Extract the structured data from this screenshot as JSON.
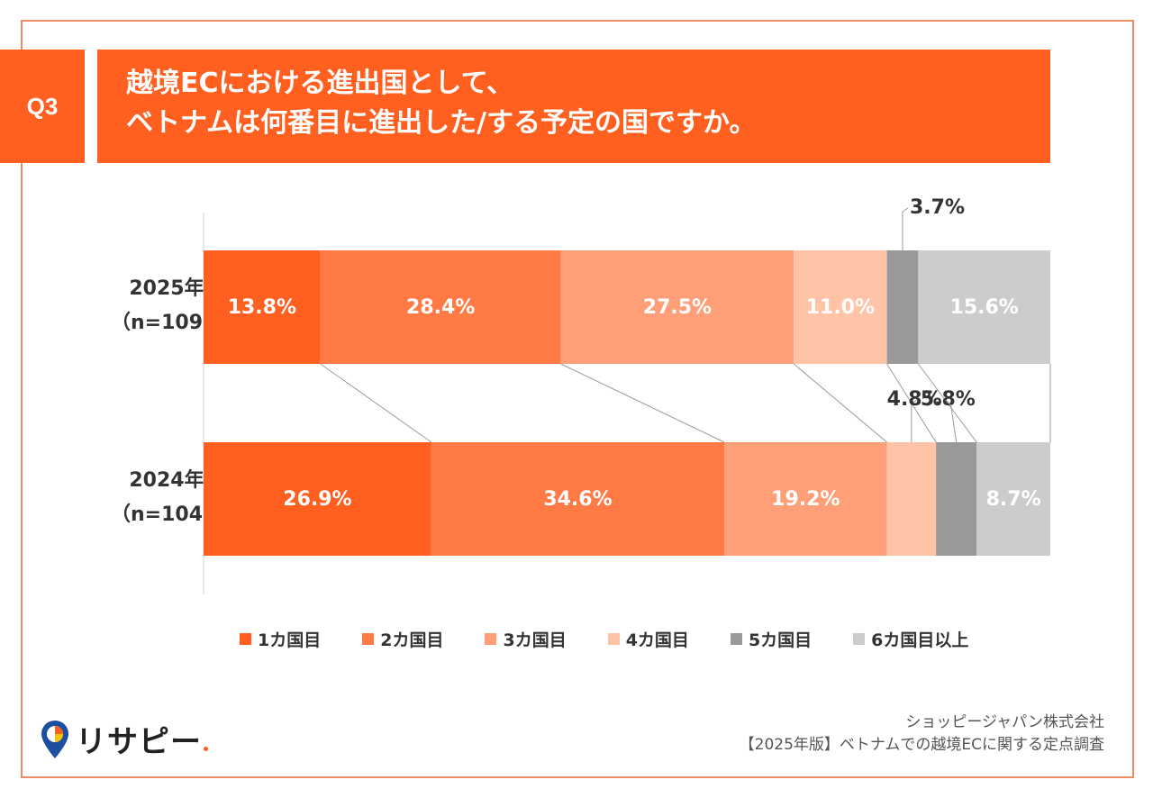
{
  "header": {
    "badge": "Q3",
    "title_line1": "越境ECにおける進出国として、",
    "title_line2": "ベトナムは何番目に進出した/する予定の国ですか。"
  },
  "chart_data": {
    "type": "bar",
    "orientation": "horizontal-stacked-100",
    "categories": [
      "2025年（n=109）",
      "2024年（n=104）"
    ],
    "category_lines": [
      [
        "2025年",
        "（n=109）"
      ],
      [
        "2024年",
        "（n=104）"
      ]
    ],
    "series": [
      {
        "name": "1カ国目",
        "values": [
          13.8,
          26.9
        ],
        "color": "#ff5f1f"
      },
      {
        "name": "2カ国目",
        "values": [
          28.4,
          34.6
        ],
        "color": "#ff7a45"
      },
      {
        "name": "3カ国目",
        "values": [
          27.5,
          19.2
        ],
        "color": "#ff9f78"
      },
      {
        "name": "4カ国目",
        "values": [
          11.0,
          5.8
        ],
        "color": "#ffc3a8"
      },
      {
        "name": "5カ国目",
        "values": [
          3.7,
          4.8
        ],
        "color": "#999999"
      },
      {
        "name": "6カ国目以上",
        "values": [
          15.6,
          8.7
        ],
        "color": "#cccccc"
      }
    ],
    "unit": "%",
    "legend_position": "bottom"
  },
  "source": {
    "line1": "ショッピージャパン株式会社",
    "line2": "【2025年版】ベトナムでの越境ECに関する定点調査"
  },
  "logo": {
    "text": "リサピー"
  }
}
